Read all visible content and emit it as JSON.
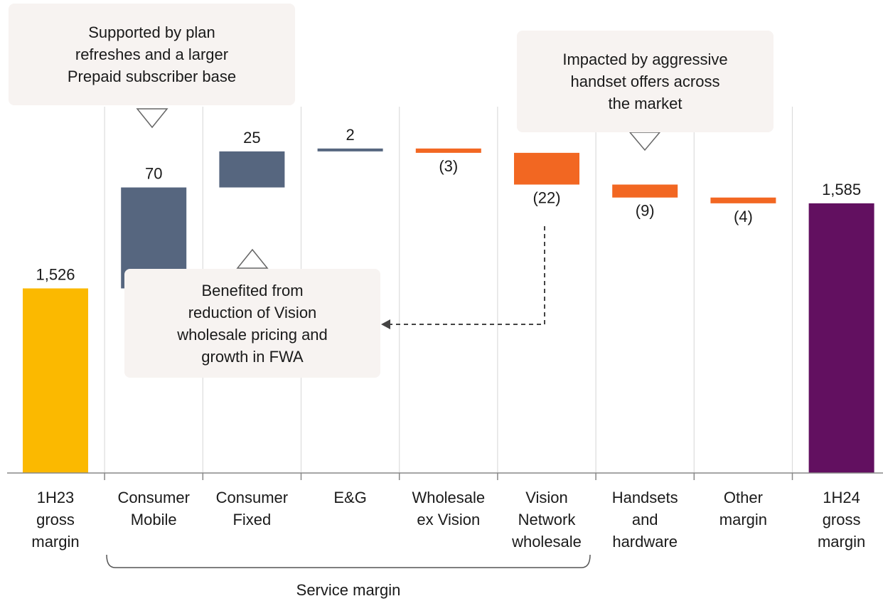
{
  "chart_data": {
    "type": "waterfall",
    "categories": [
      "1H23\ngross\nmargin",
      "Consumer\nMobile",
      "Consumer\nFixed",
      "E&G",
      "Wholesale\nex Vision",
      "Vision\nNetwork\nwholesale",
      "Handsets\nand\nhardware",
      "Other\nmargin",
      "1H24\ngross\nmargin"
    ],
    "values": [
      1526,
      70,
      25,
      2,
      -3,
      -22,
      -9,
      -4,
      1585
    ],
    "value_labels": [
      "1,526",
      "70",
      "25",
      "2",
      "(3)",
      "(22)",
      "(9)",
      "(4)",
      "1,585"
    ],
    "colors": [
      "#fbb900",
      "#56667f",
      "#56667f",
      "#56667f",
      "#f26722",
      "#f26722",
      "#f26722",
      "#f26722",
      "#621060"
    ],
    "ylim": [
      1398,
      1652
    ],
    "bracket": {
      "label": "Service margin"
    },
    "annotations": [
      {
        "text": "Supported by plan\nrefreshes and a larger\nPrepaid subscriber base"
      },
      {
        "text": "Impacted by aggressive\nhandset offers across\nthe market"
      },
      {
        "text": "Benefited from\nreduction of Vision\nwholesale pricing and\ngrowth in FWA"
      }
    ]
  }
}
